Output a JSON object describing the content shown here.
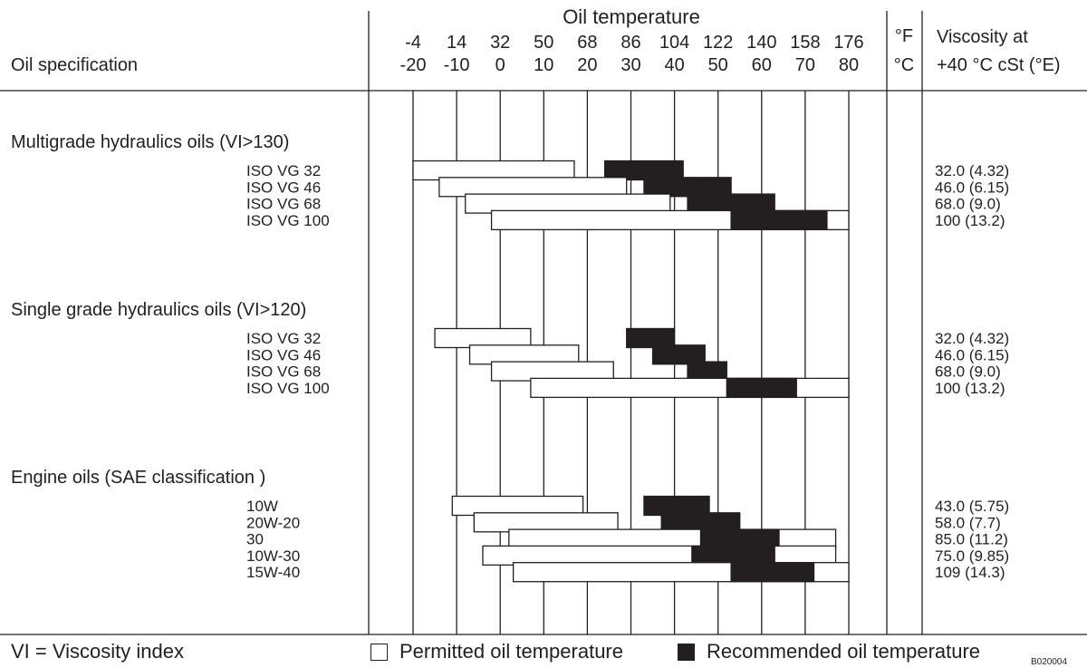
{
  "header": {
    "spec_label": "Oil specification",
    "temp_title": "Oil temperature",
    "unit_f": "°F",
    "unit_c": "°C",
    "visc_line1": "Viscosity at",
    "visc_line2": "+40 °C cSt (°E)"
  },
  "footer": {
    "vi_note": "VI = Viscosity index",
    "permitted_label": "Permitted oil temperature",
    "recommended_label": "Recommended oil temperature",
    "figure_id": "B020004"
  },
  "chart_data": {
    "type": "bar",
    "subtype": "floating-range",
    "title": "Oil temperature",
    "ticks_c": [
      "-20",
      "-10",
      "0",
      "10",
      "20",
      "30",
      "40",
      "50",
      "60",
      "70",
      "80"
    ],
    "ticks_f": [
      "-4",
      "14",
      "32",
      "50",
      "68",
      "86",
      "104",
      "122",
      "140",
      "158",
      "176"
    ],
    "xlim_c": [
      -20,
      80
    ],
    "colors": {
      "permitted": "#ffffff",
      "recommended": "#231f20",
      "line": "#231f20"
    },
    "groups": [
      {
        "name": "Multigrade hydraulics oils (VI>130)",
        "oils": [
          {
            "label": "ISO VG 32",
            "permitted": [
              -20,
              17
            ],
            "recommended": [
              24,
              42
            ],
            "viscosity": "32.0 (4.32)"
          },
          {
            "label": "ISO VG 46",
            "permitted": [
              -14,
              29
            ],
            "recommended": [
              33,
              53
            ],
            "viscosity": "46.0 (6.15)"
          },
          {
            "label": "ISO VG 68",
            "permitted": [
              -8,
              39
            ],
            "recommended": [
              43,
              63
            ],
            "viscosity": "68.0 (9.0)"
          },
          {
            "label": "ISO VG 100",
            "permitted": [
              -2,
              80
            ],
            "recommended": [
              53,
              75
            ],
            "viscosity": "100 (13.2)"
          }
        ]
      },
      {
        "name": "Single grade hydraulics oils (VI>120)",
        "oils": [
          {
            "label": "ISO VG 32",
            "permitted": [
              -15,
              7
            ],
            "recommended": [
              29,
              40
            ],
            "viscosity": "32.0 (4.32)"
          },
          {
            "label": "ISO VG 46",
            "permitted": [
              -7,
              18
            ],
            "recommended": [
              35,
              47
            ],
            "viscosity": "46.0 (6.15)"
          },
          {
            "label": "ISO VG 68",
            "permitted": [
              -2,
              26
            ],
            "recommended": [
              43,
              52
            ],
            "viscosity": "68.0 (9.0)"
          },
          {
            "label": "ISO VG 100",
            "permitted": [
              7,
              80
            ],
            "recommended": [
              52,
              68
            ],
            "viscosity": "100 (13.2)"
          }
        ]
      },
      {
        "name": "Engine oils (SAE classification )",
        "oils": [
          {
            "label": "10W",
            "permitted": [
              -11,
              19
            ],
            "recommended": [
              33,
              48
            ],
            "viscosity": "43.0 (5.75)"
          },
          {
            "label": "20W-20",
            "permitted": [
              -6,
              27
            ],
            "recommended": [
              37,
              55
            ],
            "viscosity": "58.0 (7.7)"
          },
          {
            "label": "30",
            "permitted": [
              2,
              77
            ],
            "recommended": [
              46,
              64
            ],
            "viscosity": "85.0 (11.2)"
          },
          {
            "label": "10W-30",
            "permitted": [
              -4,
              77
            ],
            "recommended": [
              44,
              63
            ],
            "viscosity": "75.0 (9.85)"
          },
          {
            "label": "15W-40",
            "permitted": [
              3,
              80
            ],
            "recommended": [
              53,
              72
            ],
            "viscosity": "109 (14.3)"
          }
        ]
      }
    ]
  }
}
